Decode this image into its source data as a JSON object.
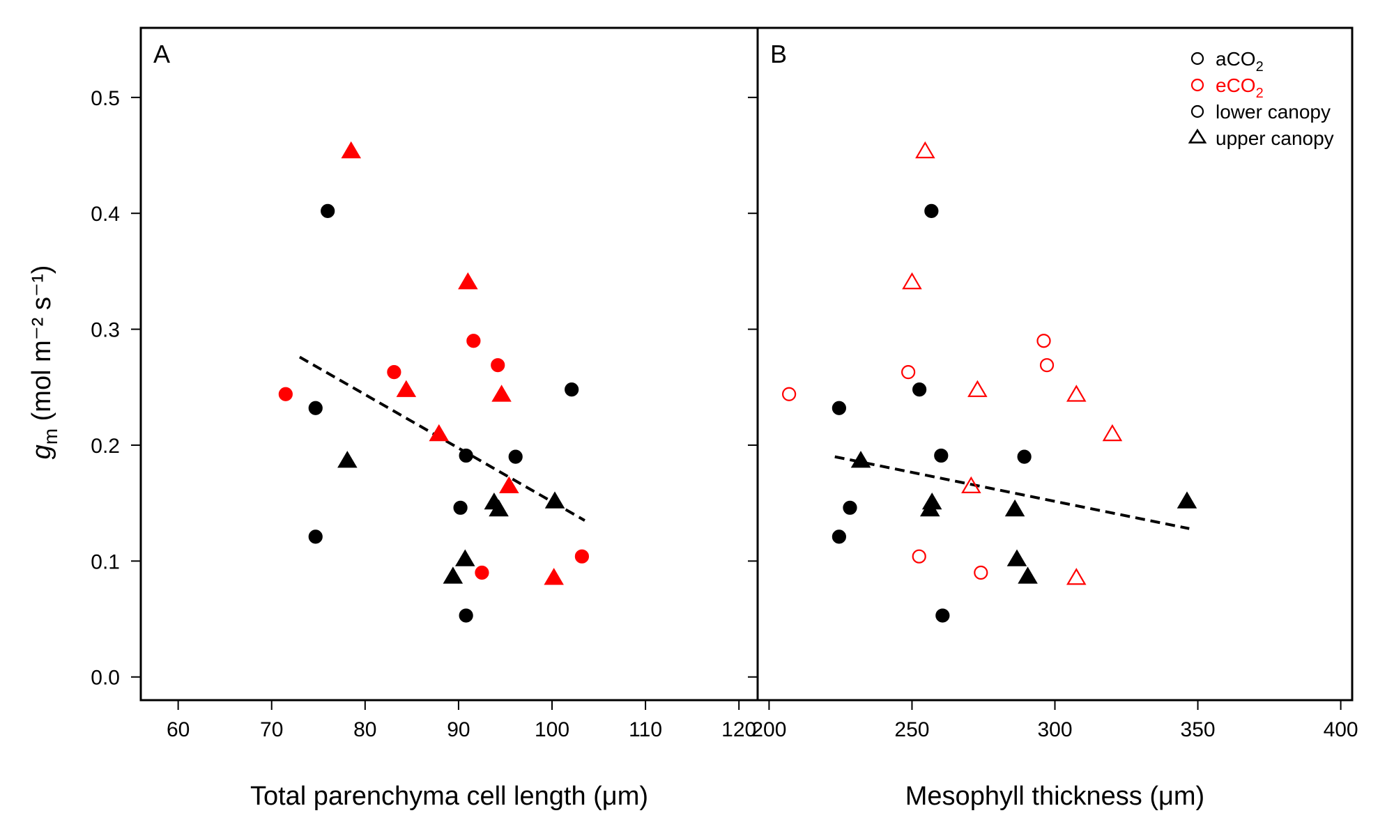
{
  "chart_data": [
    {
      "type": "scatter",
      "panel_label": "A",
      "xlabel": "Total parenchyma cell length",
      "xunit": "(μm)",
      "ylabel_symbol": "g",
      "ylabel_subscript": "m",
      "ylabel_units": "(mol m⁻² s⁻¹)",
      "xlim": [
        56,
        122
      ],
      "ylim": [
        -0.02,
        0.56
      ],
      "xticks": [
        "60",
        "70",
        "80",
        "90",
        "100",
        "110",
        "120"
      ],
      "yticks": [
        "0.0",
        "0.1",
        "0.2",
        "0.3",
        "0.4",
        "0.5"
      ],
      "grid": false,
      "series": [
        {
          "group": "aCO2 lower canopy",
          "color": "#000000",
          "marker": "circle",
          "filled": true,
          "points": [
            [
              76,
              0.402
            ],
            [
              74.7,
              0.232
            ],
            [
              74.7,
              0.121
            ],
            [
              90.8,
              0.191
            ],
            [
              90.2,
              0.146
            ],
            [
              90.8,
              0.053
            ],
            [
              96.1,
              0.19
            ],
            [
              102.1,
              0.248
            ]
          ]
        },
        {
          "group": "aCO2 upper canopy",
          "color": "#000000",
          "marker": "triangle",
          "filled": true,
          "points": [
            [
              78.1,
              0.186
            ],
            [
              93.8,
              0.15
            ],
            [
              94.3,
              0.144
            ],
            [
              100.3,
              0.151
            ],
            [
              90.7,
              0.101
            ],
            [
              89.4,
              0.086
            ]
          ]
        },
        {
          "group": "eCO2 lower canopy",
          "color": "#ff0000",
          "marker": "circle",
          "filled": true,
          "points": [
            [
              71.5,
              0.244
            ],
            [
              83.1,
              0.263
            ],
            [
              91.6,
              0.29
            ],
            [
              94.2,
              0.269
            ],
            [
              92.5,
              0.09
            ],
            [
              103.2,
              0.104
            ]
          ]
        },
        {
          "group": "eCO2 upper canopy",
          "color": "#ff0000",
          "marker": "triangle",
          "filled": true,
          "points": [
            [
              78.5,
              0.453
            ],
            [
              91,
              0.34
            ],
            [
              84.4,
              0.247
            ],
            [
              94.6,
              0.243
            ],
            [
              87.9,
              0.209
            ],
            [
              95.4,
              0.164
            ],
            [
              100.2,
              0.085
            ]
          ]
        }
      ],
      "fit_line": {
        "style": "dashed",
        "x": [
          73,
          103.5
        ],
        "y": [
          0.276,
          0.135
        ]
      }
    },
    {
      "type": "scatter",
      "panel_label": "B",
      "xlabel": "Mesophyll thickness",
      "xunit": "(μm)",
      "xlim": [
        196,
        404
      ],
      "ylim": [
        -0.02,
        0.56
      ],
      "xticks": [
        "200",
        "250",
        "300",
        "350",
        "400"
      ],
      "grid": false,
      "legend_position": "top-right",
      "legend": [
        {
          "label": "aCO",
          "sub": "2",
          "color": "#000000",
          "marker": "circle",
          "filled": false
        },
        {
          "label": "eCO",
          "sub": "2",
          "color": "#ff0000",
          "marker": "circle",
          "filled": false
        },
        {
          "label": "lower canopy",
          "sub": "",
          "color": "#000000",
          "marker": "circle",
          "filled": false
        },
        {
          "label": "upper canopy",
          "sub": "",
          "color": "#000000",
          "marker": "triangle",
          "filled": false
        }
      ],
      "series": [
        {
          "group": "aCO2 lower canopy",
          "color": "#000000",
          "marker": "circle",
          "filled": true,
          "points": [
            [
              256.8,
              0.402
            ],
            [
              224.5,
              0.232
            ],
            [
              224.5,
              0.121
            ],
            [
              252.6,
              0.248
            ],
            [
              260.2,
              0.191
            ],
            [
              228.3,
              0.146
            ],
            [
              289.3,
              0.19
            ],
            [
              260.7,
              0.053
            ]
          ]
        },
        {
          "group": "aCO2 upper canopy",
          "color": "#000000",
          "marker": "triangle",
          "filled": true,
          "points": [
            [
              232.1,
              0.186
            ],
            [
              257,
              0.15
            ],
            [
              256.3,
              0.144
            ],
            [
              286,
              0.144
            ],
            [
              346.2,
              0.151
            ],
            [
              286.7,
              0.101
            ],
            [
              290.5,
              0.086
            ]
          ]
        },
        {
          "group": "eCO2 lower canopy",
          "color": "#ff0000",
          "marker": "circle",
          "filled": false,
          "points": [
            [
              207,
              0.244
            ],
            [
              248.7,
              0.263
            ],
            [
              296.1,
              0.29
            ],
            [
              297.2,
              0.269
            ],
            [
              252.5,
              0.104
            ],
            [
              274.1,
              0.09
            ]
          ]
        },
        {
          "group": "eCO2 upper canopy",
          "color": "#ff0000",
          "marker": "triangle",
          "filled": false,
          "points": [
            [
              254.6,
              0.453
            ],
            [
              250,
              0.34
            ],
            [
              272.9,
              0.247
            ],
            [
              307.5,
              0.243
            ],
            [
              320.1,
              0.209
            ],
            [
              270.7,
              0.164
            ],
            [
              307.5,
              0.085
            ]
          ]
        }
      ],
      "fit_line": {
        "style": "dashed",
        "x": [
          223,
          347
        ],
        "y": [
          0.19,
          0.128
        ]
      }
    }
  ]
}
